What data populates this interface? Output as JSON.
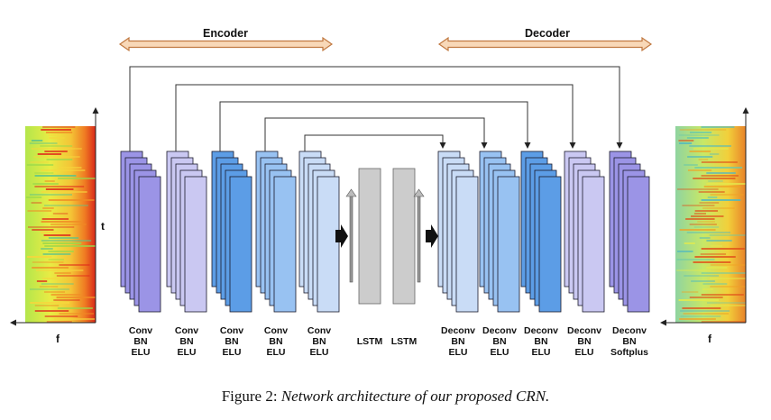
{
  "header": {
    "encoder": "Encoder",
    "decoder": "Decoder"
  },
  "spectrogram_left": {
    "axis_t": "t",
    "axis_f": "f"
  },
  "spectrogram_right": {
    "axis_f": "f"
  },
  "blocks": [
    {
      "line1": "Conv",
      "line2": "BN",
      "line3": "ELU",
      "color": "#9b94e6"
    },
    {
      "line1": "Conv",
      "line2": "BN",
      "line3": "ELU",
      "color": "#cac8f2"
    },
    {
      "line1": "Conv",
      "line2": "BN",
      "line3": "ELU",
      "color": "#5c9de6"
    },
    {
      "line1": "Conv",
      "line2": "BN",
      "line3": "ELU",
      "color": "#98c2f2"
    },
    {
      "line1": "Conv",
      "line2": "BN",
      "line3": "ELU",
      "color": "#c9dcf6"
    },
    {
      "line1": "Deconv",
      "line2": "BN",
      "line3": "ELU",
      "color": "#c9dcf6"
    },
    {
      "line1": "Deconv",
      "line2": "BN",
      "line3": "ELU",
      "color": "#98c2f2"
    },
    {
      "line1": "Deconv",
      "line2": "BN",
      "line3": "ELU",
      "color": "#5c9de6"
    },
    {
      "line1": "Deconv",
      "line2": "BN",
      "line3": "ELU",
      "color": "#cac8f2"
    },
    {
      "line1": "Deconv",
      "line2": "BN",
      "line3": "Softplus",
      "color": "#9b94e6"
    }
  ],
  "lstm": [
    "LSTM",
    "LSTM"
  ],
  "caption": {
    "prefix": "Figure 2:",
    "text": "Network architecture of our proposed CRN."
  }
}
